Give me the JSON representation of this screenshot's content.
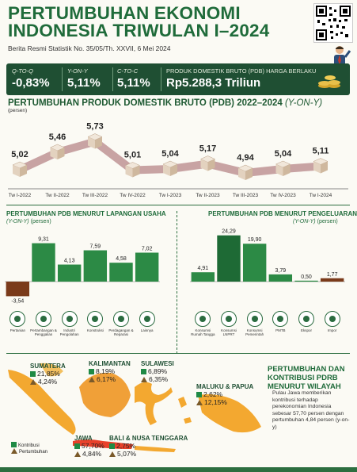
{
  "header": {
    "title_line1": "PERTUMBUHAN EKONOMI",
    "title_line2": "INDONESIA TRIWULAN I–2024",
    "subtitle": "Berita Resmi Statistik No. 35/05/Th. XXVII, 6 Mei 2024"
  },
  "kpis": [
    {
      "label": "Q-TO-Q",
      "value": "-0,83%"
    },
    {
      "label": "Y-ON-Y",
      "value": "5,11%"
    },
    {
      "label": "C-TO-C",
      "value": "5,11%"
    },
    {
      "label": "PRODUK DOMESTIK BRUTO (PDB) HARGA BERLAKU",
      "value": "Rp5.288,3 Triliun"
    }
  ],
  "gdp_section": {
    "title": "PERTUMBUHAN PRODUK DOMESTIK BRUTO (PDB) 2022–2024",
    "title_italic": "(Y-ON-Y)",
    "unit": "(persen)"
  },
  "sector_section": {
    "title": "PERTUMBUHAN PDB MENURUT LAPANGAN USAHA",
    "sub": "(Y-ON-Y)",
    "unit": "(persen)"
  },
  "expend_section": {
    "title": "PERTUMBUHAN PDB MENURUT PENGELUARAN",
    "sub": "(Y-ON-Y)",
    "unit": "(persen)"
  },
  "region_section": {
    "title": "PERTUMBUHAN DAN KONTRIBUSI PDRB MENURUT WILAYAH",
    "desc": "Pulau Jawa memberikan kontribusi terhadap perekonomian Indonesia sebesar 57,70 persen dengan pertumbuhan 4,84 persen (y-on-y)",
    "legend_contrib": "Kontribusi",
    "legend_growth": "Pertumbuhan",
    "regions": [
      {
        "name": "SUMATERA",
        "contrib": "21,85%",
        "growth": "4,24%"
      },
      {
        "name": "KALIMANTAN",
        "contrib": "8,19%",
        "growth": "6,17%"
      },
      {
        "name": "SULAWESI",
        "contrib": "6,89%",
        "growth": "6,35%"
      },
      {
        "name": "MALUKU & PAPUA",
        "contrib": "2,62%",
        "growth": "12,15%"
      },
      {
        "name": "JAWA",
        "contrib": "57,70%",
        "growth": "4,84%"
      },
      {
        "name": "BALI & NUSA TENGGARA",
        "contrib": "2,75%",
        "growth": "5,07%"
      }
    ]
  },
  "colors": {
    "dark_green": "#1f4f33",
    "bar_green": "#2c8a45",
    "bar_dark_green": "#1e6a35",
    "negative_brown": "#7a3a1a",
    "line_pink": "#c8a3a3"
  },
  "chart_data": [
    {
      "type": "line",
      "title": "PERTUMBUHAN PRODUK DOMESTIK BRUTO (PDB) 2022–2024 (Y-ON-Y)",
      "ylabel": "(persen)",
      "categories": [
        "Tw I-2022",
        "Tw II-2022",
        "Tw III-2022",
        "Tw IV-2022",
        "Tw I-2023",
        "Tw II-2023",
        "Tw III-2023",
        "Tw IV-2023",
        "Tw I-2024"
      ],
      "values": [
        5.02,
        5.46,
        5.73,
        5.01,
        5.04,
        5.17,
        4.94,
        5.04,
        5.11
      ],
      "value_labels": [
        "5,02",
        "5,46",
        "5,73",
        "5,01",
        "5,04",
        "5,17",
        "4,94",
        "5,04",
        "5,11"
      ]
    },
    {
      "type": "bar",
      "title": "PERTUMBUHAN PDB MENURUT LAPANGAN USAHA (Y-ON-Y)",
      "ylabel": "(persen)",
      "categories": [
        "Pertanian",
        "Pertambangan & Penggalian",
        "Industri Pengolahan",
        "Konstruksi",
        "Perdagangan & Reparasi",
        "Lainnya"
      ],
      "values": [
        -3.54,
        9.31,
        4.13,
        7.59,
        4.58,
        7.02
      ],
      "value_labels": [
        "-3,54",
        "9,31",
        "4,13",
        "7,59",
        "4,58",
        "7,02"
      ]
    },
    {
      "type": "bar",
      "title": "PERTUMBUHAN PDB MENURUT PENGELUARAN (Y-ON-Y)",
      "ylabel": "(persen)",
      "categories": [
        "Konsumsi Rumah Tangga",
        "Konsumsi LNPRT",
        "Konsumsi Pemerintah",
        "PMTB",
        "Ekspor",
        "Impor"
      ],
      "values": [
        4.91,
        24.29,
        19.9,
        3.79,
        0.5,
        1.77
      ],
      "value_labels": [
        "4,91",
        "24,29",
        "19,90",
        "3,79",
        "0,50",
        "1,77"
      ]
    }
  ]
}
